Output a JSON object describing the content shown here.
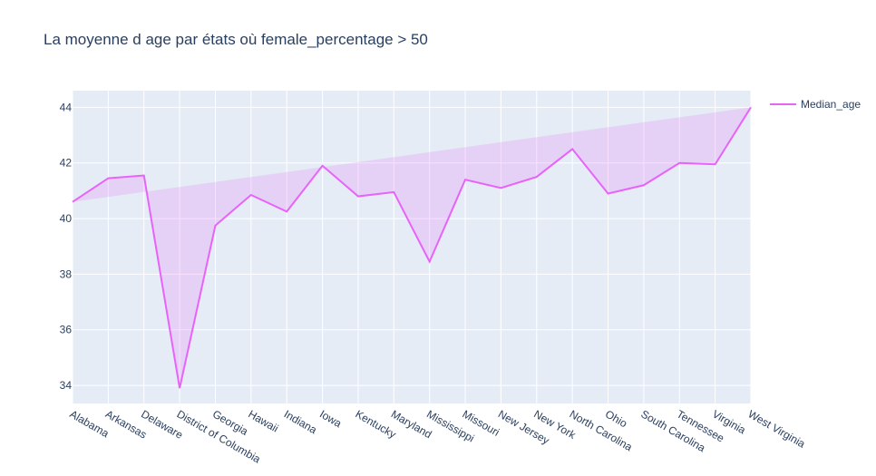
{
  "chart_data": {
    "type": "line",
    "title": "La moyenne d age par états où female_percentage > 50",
    "xlabel": "",
    "ylabel": "",
    "categories": [
      "Alabama",
      "Arkansas",
      "Delaware",
      "District of Columbia",
      "Georgia",
      "Hawaii",
      "Indiana",
      "Iowa",
      "Kentucky",
      "Maryland",
      "Mississippi",
      "Missouri",
      "New Jersey",
      "New York",
      "North Carolina",
      "Ohio",
      "South Carolina",
      "Tennessee",
      "Virginia",
      "West Virginia"
    ],
    "series": [
      {
        "name": "Median_age",
        "values": [
          40.6,
          41.45,
          41.55,
          33.9,
          39.75,
          40.85,
          40.25,
          41.9,
          40.8,
          40.95,
          38.45,
          41.4,
          41.1,
          41.5,
          42.5,
          40.9,
          41.2,
          42.0,
          41.95,
          44.0
        ]
      }
    ],
    "ylim": [
      33.35,
      44.6
    ],
    "yticks": [
      34,
      36,
      38,
      40,
      42,
      44
    ],
    "grid": true,
    "legend_position": "top-right",
    "colors": {
      "line": "#e763fa",
      "fill": "rgba(231,99,250,0.2)",
      "plot_bg": "#e5ecf6",
      "grid": "#ffffff",
      "text": "#2a3f5f"
    }
  }
}
